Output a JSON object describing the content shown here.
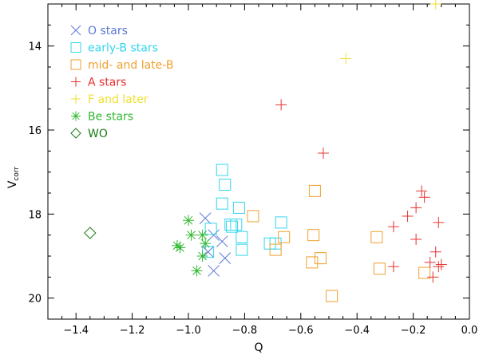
{
  "chart_data": {
    "type": "scatter",
    "xlabel": "Q",
    "ylabel_main": "V",
    "ylabel_sub": "corr",
    "xlim": [
      -1.5,
      0.0
    ],
    "ylim": [
      20.5,
      13.0
    ],
    "y_inverted": true,
    "grid": false,
    "legend_position": "top-left",
    "x_ticks": [
      -1.4,
      -1.2,
      -1.0,
      -0.8,
      -0.6,
      -0.4,
      -0.2,
      0.0
    ],
    "x_tick_labels": [
      "−1.4",
      "−1.2",
      "−1.0",
      "−0.8",
      "−0.6",
      "−0.4",
      "−0.2",
      "0.0"
    ],
    "y_ticks": [
      14,
      16,
      18,
      20
    ],
    "y_tick_labels": [
      "14",
      "16",
      "18",
      "20"
    ],
    "series": [
      {
        "name": "O stars",
        "marker": "x",
        "color": "#5a78d6",
        "points": [
          [
            -0.94,
            18.1
          ],
          [
            -0.93,
            18.9
          ],
          [
            -0.91,
            18.5
          ],
          [
            -0.88,
            18.65
          ],
          [
            -0.87,
            19.05
          ],
          [
            -0.91,
            19.35
          ]
        ]
      },
      {
        "name": "early-B stars",
        "marker": "square",
        "color": "#33d6ee",
        "points": [
          [
            -0.88,
            16.95
          ],
          [
            -0.87,
            17.3
          ],
          [
            -0.88,
            17.75
          ],
          [
            -0.85,
            18.25
          ],
          [
            -0.83,
            18.25
          ],
          [
            -0.82,
            17.85
          ],
          [
            -0.81,
            18.55
          ],
          [
            -0.81,
            18.85
          ],
          [
            -0.92,
            18.35
          ],
          [
            -0.93,
            18.9
          ],
          [
            -0.71,
            18.7
          ],
          [
            -0.67,
            18.2
          ],
          [
            -0.69,
            18.7
          ],
          [
            -0.845,
            18.3
          ]
        ]
      },
      {
        "name": "mid- and late-B",
        "marker": "square",
        "color": "#f0a030",
        "points": [
          [
            -0.77,
            18.05
          ],
          [
            -0.69,
            18.85
          ],
          [
            -0.66,
            18.55
          ],
          [
            -0.55,
            17.45
          ],
          [
            -0.555,
            18.5
          ],
          [
            -0.56,
            19.15
          ],
          [
            -0.53,
            19.05
          ],
          [
            -0.49,
            19.95
          ],
          [
            -0.33,
            18.55
          ],
          [
            -0.32,
            19.3
          ],
          [
            -0.16,
            19.4
          ]
        ]
      },
      {
        "name": "A stars",
        "marker": "plus",
        "color": "#e83030",
        "points": [
          [
            -0.67,
            15.4
          ],
          [
            -0.52,
            16.55
          ],
          [
            -0.27,
            18.3
          ],
          [
            -0.27,
            19.25
          ],
          [
            -0.22,
            18.05
          ],
          [
            -0.19,
            17.85
          ],
          [
            -0.19,
            18.6
          ],
          [
            -0.17,
            17.45
          ],
          [
            -0.16,
            17.6
          ],
          [
            -0.14,
            19.15
          ],
          [
            -0.13,
            19.5
          ],
          [
            -0.12,
            18.9
          ],
          [
            -0.11,
            18.2
          ],
          [
            -0.11,
            19.25
          ],
          [
            -0.1,
            19.2
          ]
        ]
      },
      {
        "name": "F and later",
        "marker": "plus",
        "color": "#f0e030",
        "points": [
          [
            -0.44,
            14.3
          ],
          [
            -0.12,
            13.0
          ]
        ]
      },
      {
        "name": "Be stars",
        "marker": "asterisk",
        "color": "#30b830",
        "points": [
          [
            -1.04,
            18.75
          ],
          [
            -1.03,
            18.8
          ],
          [
            -1.0,
            18.15
          ],
          [
            -0.99,
            18.5
          ],
          [
            -0.97,
            19.35
          ],
          [
            -0.95,
            18.5
          ],
          [
            -0.95,
            19.0
          ],
          [
            -0.94,
            18.7
          ]
        ]
      },
      {
        "name": "WO",
        "marker": "diamond",
        "color": "#1a7a1a",
        "points": [
          [
            -1.35,
            18.45
          ]
        ]
      }
    ]
  }
}
